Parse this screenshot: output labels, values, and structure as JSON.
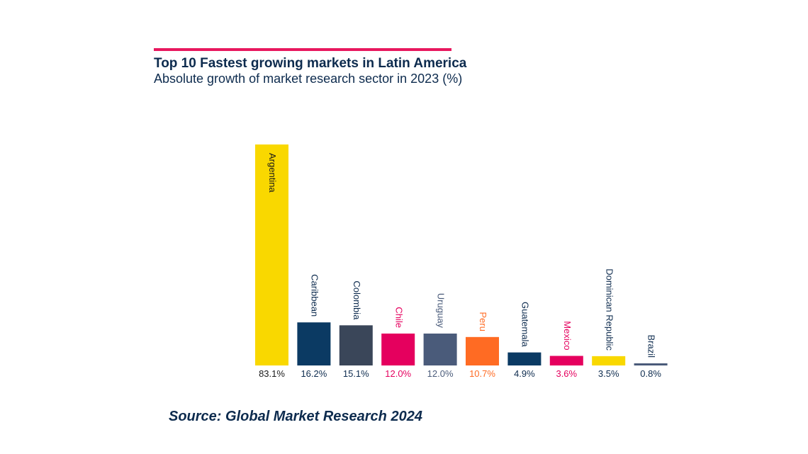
{
  "header": {
    "title": "Top 10 Fastest growing markets in Latin America",
    "subtitle": "Absolute growth of market research sector in 2023 (%)",
    "accent_color": "#e8185e"
  },
  "footer": {
    "source": "Source: Global Market Research 2024"
  },
  "chart_data": {
    "type": "bar",
    "title": "Top 10 Fastest growing markets in Latin America",
    "subtitle": "Absolute growth of market research sector in 2023 (%)",
    "xlabel": "",
    "ylabel": "",
    "ylim": [
      0,
      83.1
    ],
    "grid": false,
    "legend": "none",
    "categories": [
      "Argentina",
      "Caribbean",
      "Colombia",
      "Chile",
      "Uruguay",
      "Peru",
      "Guatemala",
      "Mexico",
      "Dominican Republic",
      "Brazil"
    ],
    "values": [
      83.1,
      16.2,
      15.1,
      12.0,
      12.0,
      10.7,
      4.9,
      3.6,
      3.5,
      0.8
    ],
    "value_labels": [
      "83.1%",
      "16.2%",
      "15.1%",
      "12.0%",
      "12.0%",
      "10.7%",
      "4.9%",
      "3.6%",
      "3.5%",
      "0.8%"
    ],
    "bar_colors": [
      "#f9d800",
      "#0b3a63",
      "#3a4659",
      "#e5005e",
      "#4a5b7a",
      "#ff6b23",
      "#0b3a63",
      "#e5005e",
      "#f9d800",
      "#4a5b7a"
    ],
    "label_colors": [
      "#1a1a1a",
      "#0d2b4e",
      "#0d2b4e",
      "#e5005e",
      "#4a5b7a",
      "#ff6b23",
      "#0d2b4e",
      "#e5005e",
      "#0d2b4e",
      "#0d2b4e"
    ]
  }
}
